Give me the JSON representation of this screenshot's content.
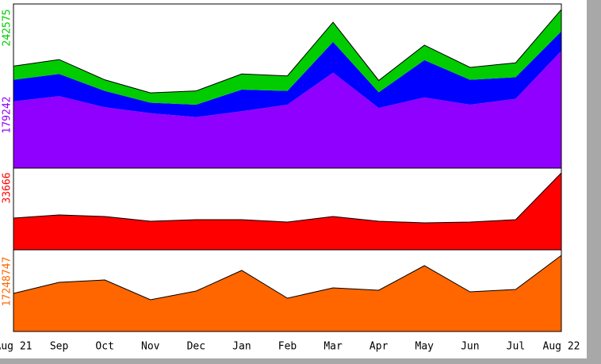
{
  "chart_data": [
    {
      "type": "stacked-area",
      "series": [
        {
          "name": "purple",
          "color": "#9000ff",
          "values": [
            102000,
            110000,
            93000,
            84000,
            78000,
            87000,
            97000,
            146000,
            92000,
            108000,
            97000,
            106000,
            179242
          ]
        },
        {
          "name": "blue",
          "color": "#0000ff",
          "values": [
            33000,
            34000,
            25000,
            16000,
            19000,
            33000,
            21000,
            47000,
            24000,
            57000,
            38000,
            33000,
            30000
          ]
        },
        {
          "name": "green",
          "color": "#00cc00",
          "values": [
            21000,
            22000,
            17000,
            15000,
            21000,
            24000,
            23000,
            30000,
            18000,
            23000,
            19000,
            22000,
            33333
          ]
        }
      ],
      "ylim": [
        0,
        251000
      ],
      "yticks": [
        179242,
        242575
      ],
      "ytick_colors": [
        "#9000ff",
        "#00cc00"
      ]
    },
    {
      "type": "stacked-area",
      "series": [
        {
          "name": "red",
          "color": "#ff0000",
          "values": [
            13880,
            15270,
            14570,
            12490,
            13190,
            13190,
            12150,
            14570,
            12490,
            11800,
            12150,
            13190,
            33666
          ]
        }
      ],
      "ylim": [
        0,
        35750
      ],
      "yticks": [
        33666
      ],
      "ytick_colors": [
        "#ff0000"
      ]
    },
    {
      "type": "stacked-area",
      "categories": [
        "Aug 21",
        "Sep",
        "Oct",
        "Nov",
        "Dec",
        "Jan",
        "Feb",
        "Mar",
        "Apr",
        "May",
        "Jun",
        "Jul",
        "Aug 22"
      ],
      "series": [
        {
          "name": "orange",
          "color": "#ff6600",
          "values": [
            8624000,
            11140000,
            11679000,
            7187000,
            9163000,
            13835000,
            7546000,
            9882000,
            9343000,
            14913000,
            8984000,
            9523000,
            17248747
          ]
        }
      ],
      "ylim": [
        0,
        18506500
      ],
      "yticks": [
        17248747
      ],
      "ytick_colors": [
        "#ff6600"
      ]
    }
  ]
}
